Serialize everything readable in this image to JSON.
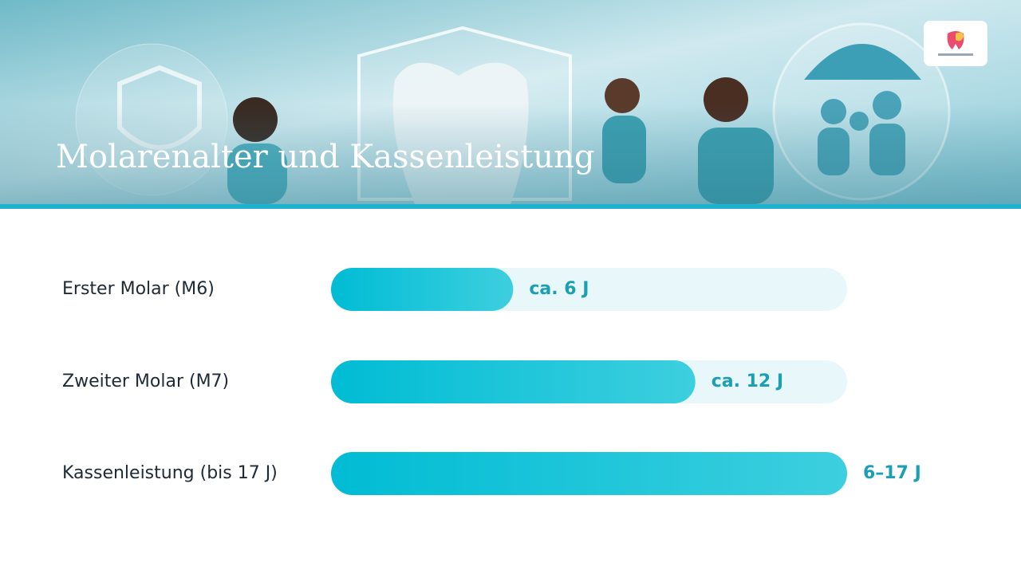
{
  "chart_data": {
    "type": "bar",
    "orientation": "horizontal",
    "title": "Molarenalter und Kassenleistung",
    "categories": [
      "Erster Molar (M6)",
      "Zweiter Molar (M7)",
      "Kassenleistung (bis 17 J)"
    ],
    "values": [
      6,
      12,
      17
    ],
    "value_labels": [
      "ca. 6 J",
      "ca. 12 J",
      "6–17 J"
    ],
    "color": "#00bcd4",
    "xlim": [
      0,
      17
    ]
  }
}
